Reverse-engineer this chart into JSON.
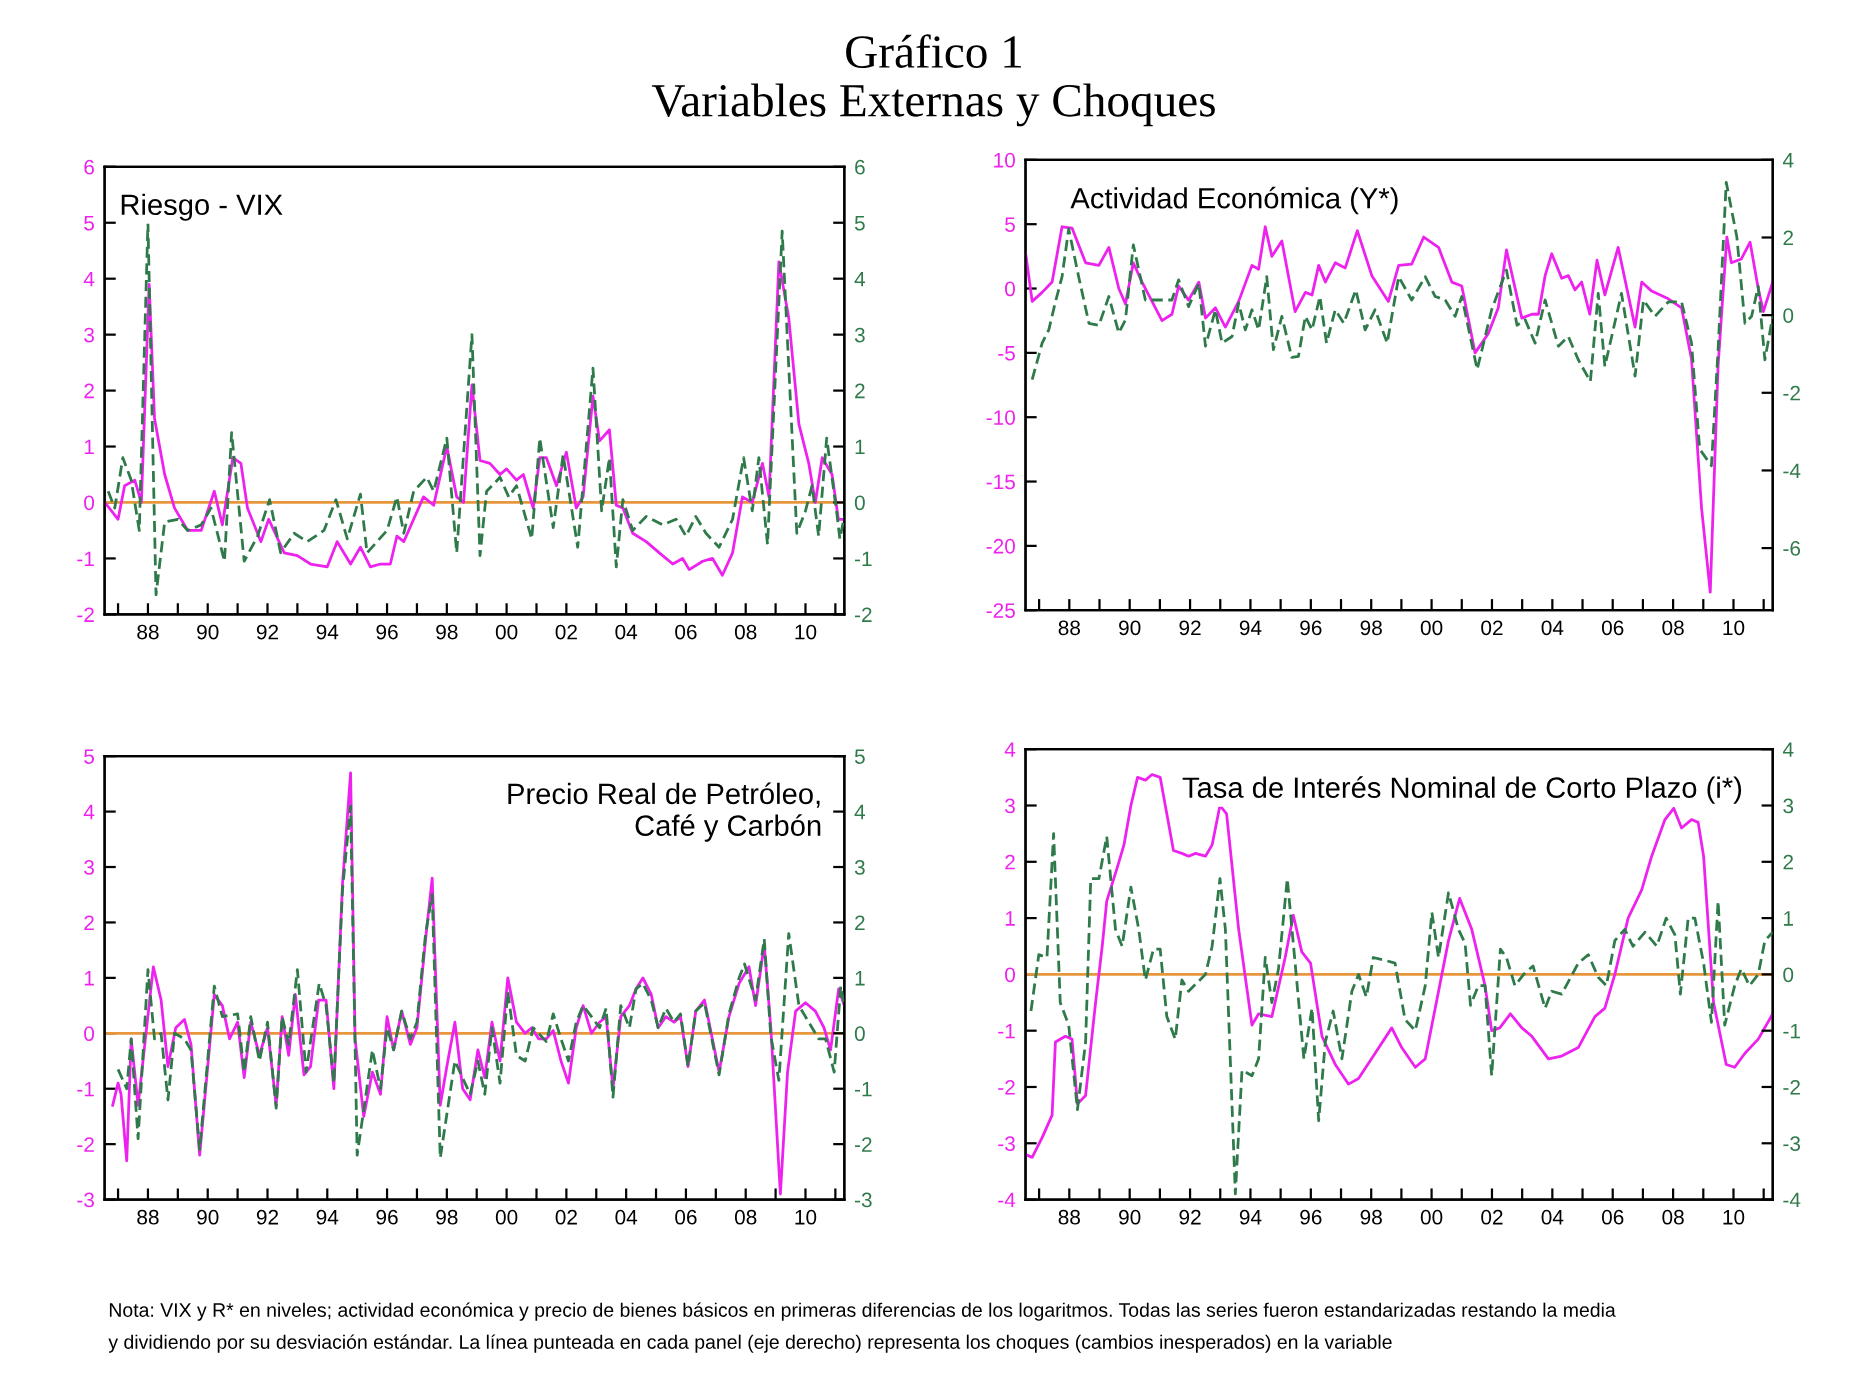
{
  "chart_data": [
    {
      "type": "line",
      "title": "Riesgo - VIX",
      "annotations": [
        "Gráfico 1",
        "Variables Externas y Choques",
        "Nota: VIX y R* en niveles; actividad económica y precio de bienes básicos en primeras diferencias de los logaritmos. Todas las series fueron estandarizadas restando la media",
        "y dividiendo por su desviación estándar. La línea punteada en cada panel (eje derecho) representa los choques (cambios inesperados) en la variable"
      ],
      "xlim": [
        1986.55,
        2011.3
      ],
      "xticks": [
        {
          "value": 1987,
          "label": null
        },
        {
          "value": 1988,
          "label": "88"
        },
        {
          "value": 1989,
          "label": null
        },
        {
          "value": 1990,
          "label": "90"
        },
        {
          "value": 1991,
          "label": null
        },
        {
          "value": 1992,
          "label": "92"
        },
        {
          "value": 1993,
          "label": null
        },
        {
          "value": 1994,
          "label": "94"
        },
        {
          "value": 1995,
          "label": null
        },
        {
          "value": 1996,
          "label": "96"
        },
        {
          "value": 1997,
          "label": null
        },
        {
          "value": 1998,
          "label": "98"
        },
        {
          "value": 1999,
          "label": null
        },
        {
          "value": 2000,
          "label": "00"
        },
        {
          "value": 2001,
          "label": null
        },
        {
          "value": 2002,
          "label": "02"
        },
        {
          "value": 2003,
          "label": null
        },
        {
          "value": 2004,
          "label": "04"
        },
        {
          "value": 2005,
          "label": null
        },
        {
          "value": 2006,
          "label": "06"
        },
        {
          "value": 2007,
          "label": null
        },
        {
          "value": 2008,
          "label": "08"
        },
        {
          "value": 2009,
          "label": null
        },
        {
          "value": 2010,
          "label": "10"
        },
        {
          "value": 2011,
          "label": null
        }
      ],
      "ylim": [
        -2,
        6
      ],
      "yticks": [
        -2,
        -1,
        0,
        1,
        2,
        3,
        4,
        5,
        6
      ],
      "y2lim": [
        -2,
        6
      ],
      "y2ticks": [
        -2,
        -1,
        0,
        1,
        2,
        3,
        4,
        5,
        6
      ],
      "ref_lines": [
        {
          "axis": "y",
          "value": 0,
          "color": "#e8963c"
        }
      ],
      "grid": false,
      "legend": false,
      "marker": "none",
      "series": [
        {
          "color": "#ee22ee",
          "line_style": "solid",
          "x": [
            1986.56,
            1987.0,
            1987.22,
            1987.56,
            1987.78,
            1988.04,
            1988.22,
            1988.56,
            1988.89,
            1989.33,
            1989.78,
            1990.22,
            1990.49,
            1990.84,
            1991.11,
            1991.33,
            1991.78,
            1992.04,
            1992.56,
            1993.0,
            1993.44,
            1994.0,
            1994.33,
            1994.78,
            1995.11,
            1995.44,
            1995.78,
            1996.11,
            1996.33,
            1996.56,
            1996.89,
            1997.22,
            1997.56,
            1998.0,
            1998.33,
            1998.56,
            1998.84,
            1999.11,
            1999.44,
            1999.78,
            2000.0,
            2000.33,
            2000.56,
            2000.89,
            2001.11,
            2001.33,
            2001.67,
            2002.0,
            2002.33,
            2002.56,
            2002.89,
            2003.11,
            2003.44,
            2003.67,
            2003.89,
            2004.22,
            2004.67,
            2005.11,
            2005.56,
            2005.89,
            2006.11,
            2006.56,
            2006.89,
            2007.22,
            2007.56,
            2007.89,
            2008.22,
            2008.56,
            2008.78,
            2009.11,
            2009.44,
            2009.78,
            2010.11,
            2010.33,
            2010.56,
            2010.89,
            2011.1,
            2011.3
          ],
          "values": [
            0.0,
            -0.3,
            0.3,
            0.4,
            0.0,
            3.9,
            1.5,
            0.5,
            -0.1,
            -0.5,
            -0.5,
            0.2,
            -0.4,
            0.8,
            0.7,
            -0.1,
            -0.7,
            -0.3,
            -0.9,
            -0.95,
            -1.1,
            -1.15,
            -0.7,
            -1.1,
            -0.8,
            -1.15,
            -1.1,
            -1.1,
            -0.6,
            -0.7,
            -0.3,
            0.1,
            -0.05,
            1.0,
            0.1,
            0.0,
            2.1,
            0.75,
            0.7,
            0.5,
            0.6,
            0.4,
            0.5,
            -0.1,
            0.8,
            0.8,
            0.3,
            0.9,
            -0.1,
            0.1,
            1.9,
            1.1,
            1.3,
            -0.05,
            -0.1,
            -0.55,
            -0.7,
            -0.9,
            -1.1,
            -1.0,
            -1.2,
            -1.05,
            -1.0,
            -1.3,
            -0.9,
            0.1,
            0.0,
            0.7,
            0.1,
            4.3,
            3.3,
            1.4,
            0.7,
            0.0,
            0.8,
            0.5,
            -0.3,
            -0.3
          ]
        },
        {
          "color": "#2f7a4a",
          "line_style": "dashed",
          "axis": "y2",
          "x": [
            1986.67,
            1986.89,
            1987.16,
            1987.44,
            1987.71,
            1988.0,
            1988.27,
            1988.56,
            1989.0,
            1989.33,
            1989.78,
            1990.11,
            1990.56,
            1990.8,
            1991.22,
            1991.67,
            1992.07,
            1992.44,
            1992.89,
            1993.33,
            1993.89,
            1994.29,
            1994.67,
            1995.11,
            1995.33,
            1996.0,
            1996.33,
            1996.56,
            1996.89,
            1997.33,
            1997.56,
            1998.0,
            1998.33,
            1998.84,
            1999.11,
            1999.33,
            1999.78,
            2000.07,
            2000.33,
            2000.84,
            2001.11,
            2001.56,
            2001.89,
            2002.38,
            2002.89,
            2003.18,
            2003.44,
            2003.67,
            2003.89,
            2004.22,
            2004.67,
            2005.22,
            2005.67,
            2006.0,
            2006.33,
            2006.67,
            2007.11,
            2007.56,
            2007.93,
            2008.22,
            2008.44,
            2008.73,
            2009.22,
            2009.71,
            2010.0,
            2010.22,
            2010.44,
            2010.71,
            2011.05,
            2011.15,
            2011.3
          ],
          "values": [
            0.2,
            -0.1,
            0.8,
            0.4,
            -0.5,
            5.0,
            -1.65,
            -0.35,
            -0.3,
            -0.5,
            -0.4,
            -0.1,
            -1.05,
            1.25,
            -1.05,
            -0.6,
            0.05,
            -0.9,
            -0.55,
            -0.7,
            -0.5,
            0.05,
            -0.65,
            0.15,
            -0.9,
            -0.5,
            0.1,
            -0.55,
            0.2,
            0.45,
            0.2,
            1.15,
            -0.9,
            3.0,
            -0.95,
            0.2,
            0.45,
            0.1,
            0.3,
            -0.65,
            1.15,
            -0.45,
            0.85,
            -0.8,
            2.4,
            -0.15,
            0.8,
            -1.15,
            0.05,
            -0.5,
            -0.25,
            -0.4,
            -0.3,
            -0.6,
            -0.25,
            -0.55,
            -0.8,
            -0.3,
            0.8,
            -0.15,
            0.8,
            -0.75,
            4.85,
            -0.55,
            -0.15,
            0.3,
            -0.6,
            1.15,
            -0.2,
            -0.65,
            -0.25
          ]
        }
      ]
    },
    {
      "type": "line",
      "title": "Actividad Económica (Y*)",
      "xlim": [
        1986.55,
        2011.3
      ],
      "xticks": [
        {
          "value": 1987,
          "label": null
        },
        {
          "value": 1988,
          "label": "88"
        },
        {
          "value": 1989,
          "label": null
        },
        {
          "value": 1990,
          "label": "90"
        },
        {
          "value": 1991,
          "label": null
        },
        {
          "value": 1992,
          "label": "92"
        },
        {
          "value": 1993,
          "label": null
        },
        {
          "value": 1994,
          "label": "94"
        },
        {
          "value": 1995,
          "label": null
        },
        {
          "value": 1996,
          "label": "96"
        },
        {
          "value": 1997,
          "label": null
        },
        {
          "value": 1998,
          "label": "98"
        },
        {
          "value": 1999,
          "label": null
        },
        {
          "value": 2000,
          "label": "00"
        },
        {
          "value": 2001,
          "label": null
        },
        {
          "value": 2002,
          "label": "02"
        },
        {
          "value": 2003,
          "label": null
        },
        {
          "value": 2004,
          "label": "04"
        },
        {
          "value": 2005,
          "label": null
        },
        {
          "value": 2006,
          "label": "06"
        },
        {
          "value": 2007,
          "label": null
        },
        {
          "value": 2008,
          "label": "08"
        },
        {
          "value": 2009,
          "label": null
        },
        {
          "value": 2010,
          "label": "10"
        },
        {
          "value": 2011,
          "label": null
        }
      ],
      "ylim": [
        -25,
        10
      ],
      "yticks": [
        -25,
        -20,
        -15,
        -10,
        -5,
        0,
        5,
        10
      ],
      "y2lim": [
        -7.6,
        4
      ],
      "y2ticks": [
        -6,
        -4,
        -2,
        0,
        2,
        4
      ],
      "grid": false,
      "legend": false,
      "marker": "none",
      "series": [
        {
          "color": "#ee22ee",
          "line_style": "solid",
          "x": [
            1986.55,
            1986.77,
            1987.1,
            1987.43,
            1987.76,
            1988.09,
            1988.54,
            1988.98,
            1989.31,
            1989.64,
            1989.86,
            1990.12,
            1990.41,
            1990.74,
            1991.07,
            1991.4,
            1991.62,
            1991.95,
            1992.29,
            1992.51,
            1992.84,
            1993.17,
            1993.61,
            1994.05,
            1994.27,
            1994.49,
            1994.71,
            1995.04,
            1995.48,
            1995.82,
            1996.04,
            1996.26,
            1996.48,
            1996.81,
            1997.14,
            1997.54,
            1998.02,
            1998.57,
            1998.91,
            1999.34,
            1999.74,
            2000.23,
            2000.67,
            2001.0,
            2001.44,
            2001.88,
            2002.21,
            2002.48,
            2002.99,
            2003.32,
            2003.54,
            2003.76,
            2003.98,
            2004.31,
            2004.53,
            2004.75,
            2004.97,
            2005.24,
            2005.48,
            2005.74,
            2006.18,
            2006.74,
            2006.96,
            2007.29,
            2007.84,
            2008.28,
            2008.61,
            2008.94,
            2009.23,
            2009.49,
            2009.78,
            2009.93,
            2010.26,
            2010.55,
            2010.82,
            2010.99,
            2011.3
          ],
          "values": [
            2.8,
            -1.0,
            -0.3,
            0.5,
            4.8,
            4.7,
            2.0,
            1.8,
            3.2,
            0.0,
            -1.2,
            2.0,
            0.5,
            -1.0,
            -2.5,
            -2.0,
            0.2,
            -0.9,
            0.5,
            -2.3,
            -1.5,
            -3.0,
            -1.0,
            1.8,
            1.5,
            4.8,
            2.5,
            3.7,
            -1.8,
            -0.3,
            -0.5,
            1.8,
            0.5,
            2.0,
            1.6,
            4.5,
            1.0,
            -1.0,
            1.8,
            1.9,
            4.0,
            3.2,
            0.5,
            0.2,
            -5.0,
            -3.5,
            -1.5,
            3.0,
            -2.3,
            -2.0,
            -2.0,
            1.0,
            2.7,
            0.8,
            1.0,
            -0.1,
            0.5,
            -2.0,
            2.2,
            -0.5,
            3.2,
            -3.0,
            0.5,
            -0.2,
            -0.8,
            -1.5,
            -5.5,
            -17.0,
            -23.6,
            -6.0,
            4.0,
            2.0,
            2.3,
            3.6,
            0.0,
            -1.8,
            0.5
          ]
        },
        {
          "color": "#2f7a4a",
          "line_style": "dashed",
          "axis": "y2",
          "x": [
            1986.77,
            1987.1,
            1987.32,
            1987.54,
            1987.76,
            1987.98,
            1988.31,
            1988.65,
            1988.98,
            1989.31,
            1989.64,
            1989.86,
            1990.12,
            1990.52,
            1990.96,
            1991.4,
            1991.62,
            1991.95,
            1992.29,
            1992.51,
            1992.84,
            1993.06,
            1993.39,
            1993.61,
            1993.83,
            1994.05,
            1994.27,
            1994.54,
            1994.76,
            1995.04,
            1995.37,
            1995.59,
            1995.82,
            1996.04,
            1996.3,
            1996.52,
            1996.81,
            1997.09,
            1997.49,
            1997.8,
            1998.13,
            1998.53,
            1998.91,
            1999.34,
            1999.79,
            2000.12,
            2000.45,
            2000.78,
            2001.0,
            2001.51,
            2001.99,
            2002.48,
            2002.83,
            2003.1,
            2003.43,
            2003.76,
            2004.2,
            2004.53,
            2004.86,
            2005.26,
            2005.52,
            2005.74,
            2006.29,
            2006.74,
            2007.02,
            2007.4,
            2007.84,
            2008.28,
            2008.61,
            2008.88,
            2009.27,
            2009.49,
            2009.76,
            2010.11,
            2010.38,
            2010.6,
            2010.82,
            2011.04,
            2011.3
          ],
          "values": [
            -1.66,
            -0.72,
            -0.38,
            0.34,
            0.99,
            2.22,
            0.99,
            -0.21,
            -0.26,
            0.48,
            -0.46,
            -0.12,
            1.81,
            0.39,
            0.39,
            0.39,
            0.91,
            0.22,
            0.82,
            -0.8,
            0.14,
            -0.72,
            -0.55,
            0.31,
            -0.38,
            0.14,
            -0.38,
            0.99,
            -0.89,
            -0.03,
            -1.09,
            -1.06,
            -0.03,
            -0.38,
            0.48,
            -0.72,
            0.14,
            -0.21,
            0.65,
            -0.38,
            0.14,
            -0.72,
            0.99,
            0.39,
            0.99,
            0.48,
            0.39,
            -0.03,
            0.48,
            -1.4,
            0.14,
            1.16,
            -0.26,
            -0.12,
            -0.72,
            0.39,
            -0.8,
            -0.55,
            -1.15,
            -1.71,
            0.56,
            -1.32,
            0.56,
            -1.57,
            0.39,
            -0.03,
            0.34,
            0.34,
            -0.72,
            -3.45,
            -3.88,
            -0.89,
            3.42,
            2.02,
            -0.21,
            -0.03,
            0.74,
            -1.15,
            -0.03
          ]
        }
      ]
    },
    {
      "type": "line",
      "title": "Precio Real de Petróleo,\nCafé y Carbón",
      "xlim": [
        1986.55,
        2011.3
      ],
      "xticks": [
        {
          "value": 1987,
          "label": null
        },
        {
          "value": 1988,
          "label": "88"
        },
        {
          "value": 1989,
          "label": null
        },
        {
          "value": 1990,
          "label": "90"
        },
        {
          "value": 1991,
          "label": null
        },
        {
          "value": 1992,
          "label": "92"
        },
        {
          "value": 1993,
          "label": null
        },
        {
          "value": 1994,
          "label": "94"
        },
        {
          "value": 1995,
          "label": null
        },
        {
          "value": 1996,
          "label": "96"
        },
        {
          "value": 1997,
          "label": null
        },
        {
          "value": 1998,
          "label": "98"
        },
        {
          "value": 1999,
          "label": null
        },
        {
          "value": 2000,
          "label": "00"
        },
        {
          "value": 2001,
          "label": null
        },
        {
          "value": 2002,
          "label": "02"
        },
        {
          "value": 2003,
          "label": null
        },
        {
          "value": 2004,
          "label": "04"
        },
        {
          "value": 2005,
          "label": null
        },
        {
          "value": 2006,
          "label": "06"
        },
        {
          "value": 2007,
          "label": null
        },
        {
          "value": 2008,
          "label": "08"
        },
        {
          "value": 2009,
          "label": null
        },
        {
          "value": 2010,
          "label": "10"
        },
        {
          "value": 2011,
          "label": null
        }
      ],
      "ylim": [
        -3,
        5
      ],
      "yticks": [
        -3,
        -2,
        -1,
        0,
        1,
        2,
        3,
        4,
        5
      ],
      "y2lim": [
        -3,
        5
      ],
      "y2ticks": [
        -3,
        -2,
        -1,
        0,
        1,
        2,
        3,
        4,
        5
      ],
      "ref_lines": [
        {
          "axis": "y",
          "value": 0,
          "color": "#e8963c"
        }
      ],
      "grid": false,
      "legend": false,
      "marker": "none",
      "series": [
        {
          "color": "#ee22ee",
          "line_style": "solid",
          "x": [
            1986.82,
            1987.0,
            1987.1,
            1987.29,
            1987.44,
            1987.67,
            1988.18,
            1988.44,
            1988.67,
            1988.93,
            1989.22,
            1989.44,
            1989.73,
            1990.22,
            1990.49,
            1990.73,
            1991.0,
            1991.22,
            1991.44,
            1991.73,
            1992.0,
            1992.29,
            1992.49,
            1992.71,
            1992.93,
            1993.22,
            1993.44,
            1993.71,
            1993.96,
            1994.22,
            1994.51,
            1994.78,
            1994.93,
            1995.22,
            1995.51,
            1995.78,
            1996.0,
            1996.22,
            1996.49,
            1996.78,
            1997.0,
            1997.29,
            1997.51,
            1997.78,
            1998.0,
            1998.27,
            1998.53,
            1998.78,
            1999.04,
            1999.27,
            1999.51,
            1999.78,
            2000.04,
            2000.33,
            2000.62,
            2000.84,
            2001.07,
            2001.33,
            2001.56,
            2001.82,
            2002.07,
            2002.33,
            2002.56,
            2002.84,
            2003.11,
            2003.33,
            2003.56,
            2003.82,
            2004.11,
            2004.33,
            2004.56,
            2004.84,
            2005.07,
            2005.33,
            2005.6,
            2005.82,
            2006.07,
            2006.33,
            2006.62,
            2007.11,
            2007.44,
            2007.78,
            2008.11,
            2008.33,
            2008.62,
            2008.84,
            2009.16,
            2009.4,
            2009.67,
            2010.0,
            2010.33,
            2010.62,
            2010.84,
            2011.11,
            2011.3
          ],
          "values": [
            -1.3,
            -0.9,
            -1.1,
            -2.3,
            -0.1,
            -1.3,
            1.2,
            0.6,
            -0.6,
            0.1,
            0.25,
            -0.2,
            -2.2,
            0.7,
            0.5,
            -0.1,
            0.2,
            -0.8,
            0.2,
            -0.4,
            0.1,
            -1.3,
            0.3,
            -0.4,
            0.7,
            -0.75,
            -0.6,
            0.6,
            0.6,
            -1.0,
            2.7,
            4.7,
            -0.1,
            -1.5,
            -0.7,
            -1.1,
            0.3,
            -0.3,
            0.4,
            -0.2,
            0.1,
            1.7,
            2.8,
            -1.3,
            -0.6,
            0.2,
            -1.0,
            -1.2,
            -0.3,
            -0.8,
            0.2,
            -0.5,
            1.0,
            0.2,
            0.0,
            0.1,
            -0.1,
            -0.1,
            0.05,
            -0.5,
            -0.9,
            0.1,
            0.5,
            0.0,
            0.2,
            0.3,
            -1.0,
            0.3,
            0.5,
            0.8,
            1.0,
            0.7,
            0.1,
            0.3,
            0.2,
            0.3,
            -0.6,
            0.4,
            0.6,
            -0.7,
            0.3,
            0.9,
            1.2,
            0.5,
            1.6,
            0.1,
            -2.9,
            -0.7,
            0.4,
            0.55,
            0.4,
            0.1,
            -0.3,
            0.8,
            0.5
          ]
        },
        {
          "color": "#2f7a4a",
          "line_style": "dashed",
          "axis": "y2",
          "x": [
            1987.0,
            1987.29,
            1987.44,
            1987.67,
            1988.0,
            1988.22,
            1988.44,
            1988.67,
            1988.89,
            1989.22,
            1989.44,
            1989.73,
            1990.22,
            1990.49,
            1991.0,
            1991.22,
            1991.44,
            1991.73,
            1992.0,
            1992.29,
            1992.49,
            1992.71,
            1993.0,
            1993.29,
            1993.73,
            1993.96,
            1994.22,
            1994.51,
            1994.78,
            1995.0,
            1995.51,
            1995.78,
            1996.0,
            1996.22,
            1996.49,
            1996.78,
            1997.0,
            1997.29,
            1997.51,
            1997.78,
            1998.27,
            1998.78,
            1999.04,
            1999.27,
            1999.51,
            1999.78,
            2000.04,
            2000.33,
            2000.62,
            2000.89,
            2001.33,
            2001.56,
            2001.82,
            2002.07,
            2002.33,
            2002.56,
            2002.84,
            2003.11,
            2003.33,
            2003.56,
            2003.82,
            2004.11,
            2004.33,
            2004.56,
            2004.84,
            2005.07,
            2005.33,
            2005.6,
            2005.82,
            2006.07,
            2006.33,
            2006.62,
            2007.11,
            2007.44,
            2007.78,
            2007.96,
            2008.33,
            2008.62,
            2008.84,
            2009.11,
            2009.44,
            2009.78,
            2010.11,
            2010.44,
            2010.67,
            2010.96,
            2011.18,
            2011.3
          ],
          "values": [
            -0.65,
            -1.0,
            -0.1,
            -1.9,
            1.15,
            -0.1,
            0.0,
            -1.2,
            0.0,
            -0.1,
            -0.3,
            -2.1,
            0.85,
            0.3,
            0.35,
            -0.7,
            0.3,
            -0.5,
            0.2,
            -1.35,
            0.3,
            -0.2,
            1.15,
            -0.7,
            0.9,
            0.5,
            -0.9,
            2.6,
            4.1,
            -2.2,
            -0.3,
            -1.0,
            0.1,
            -0.3,
            0.4,
            -0.1,
            0.2,
            1.8,
            2.5,
            -2.25,
            -0.5,
            -1.1,
            -0.5,
            -1.1,
            0.1,
            -0.9,
            0.75,
            -0.4,
            -0.5,
            0.1,
            -0.15,
            0.35,
            -0.1,
            -0.5,
            0.2,
            0.5,
            0.3,
            0.1,
            0.45,
            -1.15,
            0.5,
            0.1,
            0.8,
            0.9,
            0.6,
            0.1,
            0.45,
            0.2,
            0.35,
            -0.6,
            0.4,
            0.55,
            -0.75,
            0.35,
            1.0,
            1.25,
            0.6,
            1.7,
            -0.05,
            -0.85,
            1.8,
            0.5,
            0.2,
            -0.1,
            -0.1,
            -0.7,
            0.85,
            0.5
          ]
        }
      ]
    },
    {
      "type": "line",
      "title": "Tasa de Interés Nominal de Corto Plazo (i*)",
      "xlim": [
        1986.55,
        2011.3
      ],
      "xticks": [
        {
          "value": 1987,
          "label": null
        },
        {
          "value": 1988,
          "label": "88"
        },
        {
          "value": 1989,
          "label": null
        },
        {
          "value": 1990,
          "label": "90"
        },
        {
          "value": 1991,
          "label": null
        },
        {
          "value": 1992,
          "label": "92"
        },
        {
          "value": 1993,
          "label": null
        },
        {
          "value": 1994,
          "label": "94"
        },
        {
          "value": 1995,
          "label": null
        },
        {
          "value": 1996,
          "label": "96"
        },
        {
          "value": 1997,
          "label": null
        },
        {
          "value": 1998,
          "label": "98"
        },
        {
          "value": 1999,
          "label": null
        },
        {
          "value": 2000,
          "label": "00"
        },
        {
          "value": 2001,
          "label": null
        },
        {
          "value": 2002,
          "label": "02"
        },
        {
          "value": 2003,
          "label": null
        },
        {
          "value": 2004,
          "label": "04"
        },
        {
          "value": 2005,
          "label": null
        },
        {
          "value": 2006,
          "label": "06"
        },
        {
          "value": 2007,
          "label": null
        },
        {
          "value": 2008,
          "label": "08"
        },
        {
          "value": 2009,
          "label": null
        },
        {
          "value": 2010,
          "label": "10"
        },
        {
          "value": 2011,
          "label": null
        }
      ],
      "ylim": [
        -4,
        4
      ],
      "yticks": [
        -4,
        -3,
        -2,
        -1,
        0,
        1,
        2,
        3,
        4
      ],
      "y2lim": [
        -4,
        4
      ],
      "y2ticks": [
        -4,
        -3,
        -2,
        -1,
        0,
        1,
        2,
        3,
        4
      ],
      "ref_lines": [
        {
          "axis": "y",
          "value": 0,
          "color": "#e8963c"
        }
      ],
      "grid": false,
      "legend": false,
      "marker": "none",
      "series": [
        {
          "color": "#ee22ee",
          "line_style": "solid",
          "x": [
            1986.55,
            1986.77,
            1987.1,
            1987.43,
            1987.54,
            1987.87,
            1988.09,
            1988.27,
            1988.54,
            1988.87,
            1989.09,
            1989.24,
            1989.59,
            1989.81,
            1990.04,
            1990.26,
            1990.52,
            1990.74,
            1991.01,
            1991.45,
            1991.73,
            1991.95,
            1992.18,
            1992.51,
            1992.73,
            1992.99,
            1993.21,
            1993.61,
            1994.05,
            1994.27,
            1994.71,
            1995.15,
            1995.42,
            1995.7,
            1995.99,
            1996.37,
            1996.81,
            1997.25,
            1997.58,
            1998.13,
            1998.68,
            1999.01,
            1999.46,
            1999.79,
            2000.12,
            2000.56,
            2000.93,
            2001.33,
            2001.77,
            2001.99,
            2002.26,
            2002.61,
            2002.99,
            2003.32,
            2003.87,
            2004.31,
            2004.86,
            2005.41,
            2005.74,
            2006.07,
            2006.51,
            2006.96,
            2007.29,
            2007.73,
            2008.02,
            2008.28,
            2008.61,
            2008.83,
            2009.01,
            2009.34,
            2009.76,
            2010.04,
            2010.38,
            2010.82,
            2011.3
          ],
          "values": [
            -3.2,
            -3.25,
            -2.9,
            -2.5,
            -1.2,
            -1.1,
            -1.15,
            -2.3,
            -2.15,
            -0.5,
            0.5,
            1.3,
            1.9,
            2.3,
            3.0,
            3.5,
            3.45,
            3.55,
            3.5,
            2.2,
            2.15,
            2.1,
            2.15,
            2.1,
            2.3,
            3.0,
            2.85,
            0.8,
            -0.9,
            -0.7,
            -0.75,
            0.3,
            1.05,
            0.4,
            0.2,
            -1.1,
            -1.6,
            -1.95,
            -1.85,
            -1.4,
            -0.95,
            -1.3,
            -1.65,
            -1.5,
            -0.6,
            0.6,
            1.35,
            0.8,
            -0.2,
            -1.0,
            -0.95,
            -0.7,
            -0.95,
            -1.1,
            -1.5,
            -1.45,
            -1.3,
            -0.75,
            -0.6,
            0.0,
            1.0,
            1.5,
            2.1,
            2.75,
            2.95,
            2.6,
            2.75,
            2.7,
            2.1,
            -0.5,
            -1.6,
            -1.65,
            -1.4,
            -1.15,
            -0.7
          ]
        },
        {
          "color": "#2f7a4a",
          "line_style": "dashed",
          "axis": "y2",
          "x": [
            1986.73,
            1986.99,
            1987.26,
            1987.48,
            1987.7,
            1987.98,
            1988.27,
            1988.54,
            1988.71,
            1988.98,
            1989.24,
            1989.53,
            1989.75,
            1990.04,
            1990.3,
            1990.52,
            1990.79,
            1991.01,
            1991.23,
            1991.51,
            1991.73,
            1991.95,
            1992.51,
            1992.73,
            1992.99,
            1993.17,
            1993.5,
            1993.72,
            1994.05,
            1994.27,
            1994.49,
            1994.71,
            1994.93,
            1995.22,
            1995.48,
            1995.77,
            1996.04,
            1996.26,
            1996.48,
            1996.74,
            1997.03,
            1997.36,
            1997.58,
            1997.84,
            1998.07,
            1998.46,
            1998.79,
            1999.12,
            1999.46,
            1999.79,
            2000.01,
            2000.23,
            2000.56,
            2000.89,
            2001.11,
            2001.29,
            2001.55,
            2001.77,
            2001.99,
            2002.28,
            2002.48,
            2002.76,
            2003.05,
            2003.36,
            2003.76,
            2003.98,
            2004.31,
            2004.86,
            2005.19,
            2005.52,
            2005.79,
            2006.07,
            2006.4,
            2006.67,
            2007.07,
            2007.46,
            2007.77,
            2008.06,
            2008.24,
            2008.5,
            2008.72,
            2009.01,
            2009.27,
            2009.49,
            2009.71,
            2010.04,
            2010.26,
            2010.53,
            2010.82,
            2011.04,
            2011.3
          ],
          "values": [
            -0.65,
            0.35,
            0.3,
            2.5,
            -0.5,
            -0.9,
            -2.4,
            -1.2,
            1.7,
            1.7,
            2.45,
            0.8,
            0.5,
            1.55,
            0.8,
            -0.1,
            0.45,
            0.45,
            -0.75,
            -1.15,
            -0.1,
            -0.3,
            0.0,
            0.5,
            1.7,
            0.8,
            -3.9,
            -1.7,
            -1.8,
            -1.5,
            0.3,
            -0.5,
            0.1,
            1.7,
            0.2,
            -1.5,
            -0.6,
            -2.6,
            -1.2,
            -0.65,
            -1.5,
            -0.3,
            0.0,
            -0.4,
            0.3,
            0.25,
            0.2,
            -0.8,
            -1.0,
            -0.2,
            1.1,
            0.3,
            1.45,
            0.8,
            0.55,
            -0.55,
            -0.2,
            -0.2,
            -1.8,
            0.45,
            0.3,
            -0.2,
            0.0,
            0.15,
            -0.6,
            -0.3,
            -0.35,
            0.2,
            0.35,
            -0.05,
            -0.2,
            0.6,
            0.8,
            0.5,
            0.75,
            0.5,
            1.0,
            0.7,
            -0.35,
            1.0,
            1.0,
            0.2,
            -0.85,
            1.3,
            -0.9,
            -0.2,
            0.1,
            -0.2,
            0.0,
            0.6,
            0.75
          ]
        }
      ]
    }
  ]
}
